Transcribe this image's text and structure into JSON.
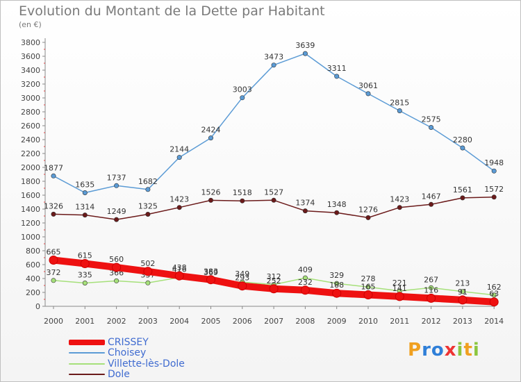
{
  "header": {
    "title": "Evolution du Montant de la Dette par Habitant",
    "subtitle": "(en €)"
  },
  "branding": {
    "text": "Proxiti"
  },
  "chart_data": {
    "type": "line",
    "title": "Evolution du Montant de la Dette par Habitant",
    "subtitle": "(en €)",
    "x": [
      2000,
      2001,
      2002,
      2003,
      2004,
      2005,
      2006,
      2007,
      2008,
      2009,
      2010,
      2011,
      2012,
      2013,
      2014
    ],
    "ylim": [
      0,
      3800
    ],
    "yticks": [
      0,
      200,
      400,
      600,
      800,
      1000,
      1200,
      1400,
      1600,
      1800,
      2000,
      2200,
      2400,
      2600,
      2800,
      3000,
      3200,
      3400,
      3600,
      3800
    ],
    "grid": false,
    "legend_position": "bottom-left",
    "series": [
      {
        "name": "Choisey",
        "color": "#5b9bd5",
        "values": [
          1877,
          1635,
          1737,
          1682,
          2144,
          2424,
          3003,
          3473,
          3639,
          3311,
          3061,
          2815,
          2575,
          2280,
          1948
        ]
      },
      {
        "name": "Dole",
        "color": "#6b1a1a",
        "values": [
          1326,
          1314,
          1249,
          1325,
          1423,
          1526,
          1518,
          1527,
          1374,
          1348,
          1276,
          1423,
          1467,
          1561,
          1572
        ]
      },
      {
        "name": "Villette-lès-Dole",
        "color": "#a6e07a",
        "values": [
          372,
          335,
          366,
          337,
          416,
          369,
          349,
          312,
          409,
          329,
          278,
          221,
          267,
          213,
          162
        ]
      },
      {
        "name": "CRISSEY",
        "color": "#ee1111",
        "values": [
          665,
          615,
          560,
          502,
          438,
          383,
          293,
          252,
          232,
          188,
          165,
          141,
          116,
          91,
          63
        ]
      }
    ],
    "legend_order": [
      "CRISSEY",
      "Choisey",
      "Villette-lès-Dole",
      "Dole"
    ]
  }
}
